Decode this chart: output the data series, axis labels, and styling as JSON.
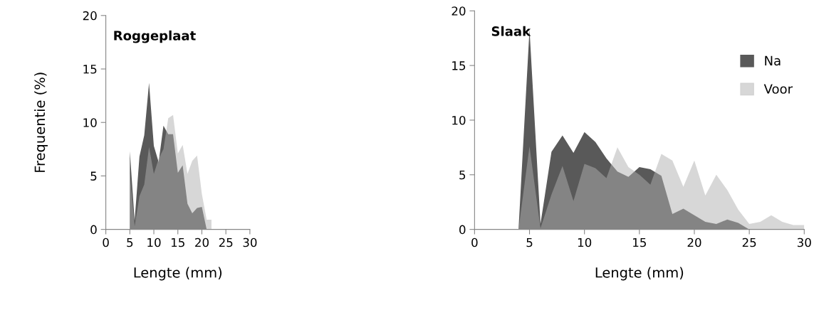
{
  "chart_data": [
    {
      "type": "area",
      "title": "Roggeplaat",
      "xlabel": "Lengte (mm)",
      "ylabel": "Frequentie (%)",
      "x": [
        5,
        6,
        7,
        8,
        9,
        10,
        11,
        12,
        13,
        14,
        15,
        16,
        17,
        18,
        19,
        20,
        21,
        22
      ],
      "series": [
        {
          "color": "#595959",
          "values": [
            7.3,
            0.8,
            6.8,
            8.8,
            13.7,
            7.8,
            6.3,
            9.7,
            8.9,
            8.9,
            5.3,
            6.0,
            2.4,
            1.5,
            2.0,
            2.1,
            0,
            null
          ]
        },
        {
          "color": "#b0b0b0",
          "values": [
            5.3,
            0.3,
            3.1,
            4.2,
            7.7,
            5.2,
            6.6,
            7.5,
            10.4,
            10.7,
            7.1,
            7.9,
            5.2,
            6.4,
            6.9,
            3.3,
            0.9,
            0.9
          ]
        }
      ],
      "xlim": [
        0,
        30
      ],
      "xticks": [
        0,
        5,
        10,
        15,
        20,
        25,
        30
      ],
      "ylim": [
        0,
        20
      ],
      "yticks": [
        0,
        5,
        10,
        15,
        20
      ],
      "grid": false,
      "legend": false
    },
    {
      "type": "area",
      "title": "Slaak",
      "xlabel": "Lengte (mm)",
      "x": [
        0,
        1,
        2,
        3,
        4,
        5,
        6,
        7,
        8,
        9,
        10,
        11,
        12,
        13,
        14,
        15,
        16,
        17,
        18,
        19,
        20,
        21,
        22,
        23,
        24,
        25,
        26,
        27,
        28,
        29,
        30
      ],
      "series": [
        {
          "name": "Na",
          "color": "#595959",
          "values": [
            0,
            0,
            0,
            0,
            0,
            18.3,
            0.5,
            7.1,
            8.6,
            7.0,
            8.9,
            8.0,
            6.5,
            5.3,
            4.8,
            5.7,
            5.5,
            4.9,
            1.4,
            1.9,
            1.3,
            0.7,
            0.5,
            0.9,
            0.6,
            0,
            0,
            0,
            0,
            0,
            0
          ]
        },
        {
          "name": "Voor",
          "color": "#b0b0b0",
          "values": [
            0,
            0,
            0,
            0,
            0,
            7.6,
            0.1,
            3.2,
            5.8,
            2.6,
            6.0,
            5.6,
            4.7,
            7.5,
            5.7,
            5.0,
            4.1,
            6.9,
            6.3,
            3.9,
            6.3,
            3.1,
            5.0,
            3.6,
            1.8,
            0.5,
            0.7,
            1.3,
            0.7,
            0.4,
            0.4
          ]
        }
      ],
      "xlim": [
        0,
        30
      ],
      "xticks": [
        0,
        5,
        10,
        15,
        20,
        25,
        30
      ],
      "ylim": [
        0,
        20
      ],
      "yticks": [
        0,
        5,
        10,
        15,
        20
      ],
      "grid": false,
      "legend": "top right"
    }
  ]
}
